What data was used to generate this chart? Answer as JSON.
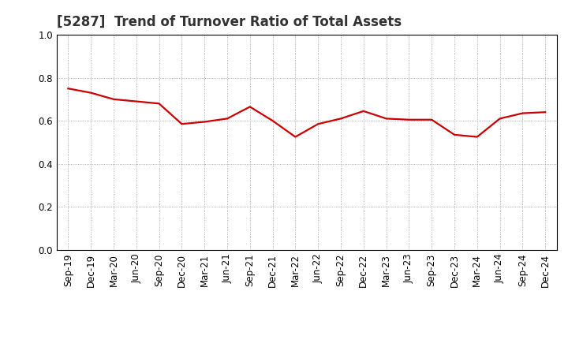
{
  "title": "[5287]  Trend of Turnover Ratio of Total Assets",
  "x_labels": [
    "Sep-19",
    "Dec-19",
    "Mar-20",
    "Jun-20",
    "Sep-20",
    "Dec-20",
    "Mar-21",
    "Jun-21",
    "Sep-21",
    "Dec-21",
    "Mar-22",
    "Jun-22",
    "Sep-22",
    "Dec-22",
    "Mar-23",
    "Jun-23",
    "Sep-23",
    "Dec-23",
    "Mar-24",
    "Jun-24",
    "Sep-24",
    "Dec-24"
  ],
  "y_values": [
    0.75,
    0.73,
    0.7,
    0.69,
    0.68,
    0.585,
    0.595,
    0.61,
    0.665,
    0.6,
    0.525,
    0.585,
    0.61,
    0.645,
    0.61,
    0.605,
    0.605,
    0.535,
    0.525,
    0.61,
    0.635,
    0.64
  ],
  "line_color": "#CC0000",
  "line_width": 1.6,
  "ylim": [
    0.0,
    1.0
  ],
  "yticks": [
    0.0,
    0.2,
    0.4,
    0.6,
    0.8,
    1.0
  ],
  "grid_color": "#999999",
  "background_color": "#ffffff",
  "title_fontsize": 12,
  "tick_fontsize": 8.5
}
